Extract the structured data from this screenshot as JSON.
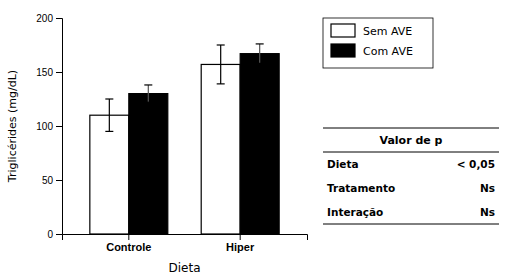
{
  "chart_data": {
    "type": "bar",
    "categories": [
      "Controle",
      "Hiper"
    ],
    "series": [
      {
        "name": "Sem AVE",
        "color": "#ffffff",
        "values": [
          110,
          157
        ],
        "errors": [
          15,
          18
        ]
      },
      {
        "name": "Com AVE",
        "color": "#000000",
        "values": [
          130,
          167
        ],
        "errors": [
          8,
          9
        ]
      }
    ],
    "xlabel": "Dieta",
    "ylabel": "Triglicérides (mg/dL)",
    "ylim": [
      0,
      200
    ],
    "yticks": [
      0,
      50,
      100,
      150,
      200
    ],
    "legend": "right",
    "table": {
      "title": "Valor de p",
      "rows": [
        "Dieta",
        "Tratamento",
        "Interação"
      ],
      "values": [
        "< 0,05",
        "Ns",
        "Ns"
      ]
    }
  }
}
